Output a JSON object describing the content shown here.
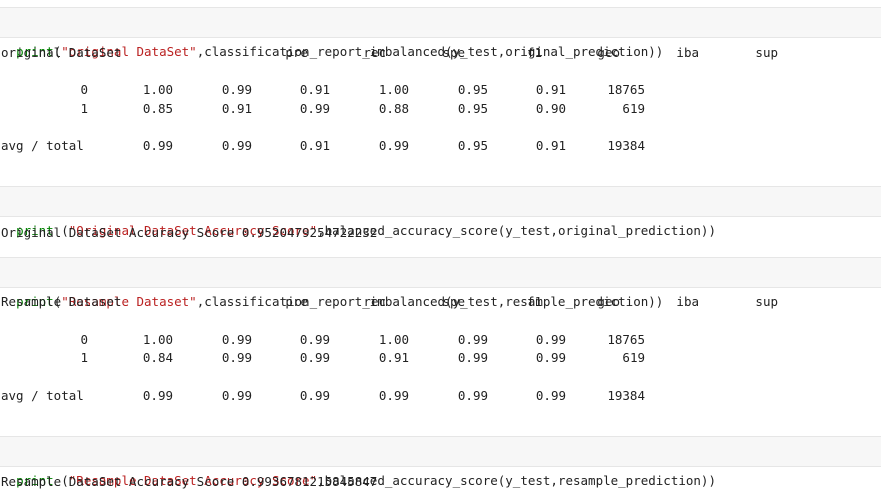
{
  "cell1": {
    "fn": "print",
    "open": "(",
    "str": "\"original DataSet\"",
    "rest": ",classification_report_imbalanced(y_test,original_prediction))"
  },
  "report1": {
    "title": "original DataSet",
    "headers": [
      "pre",
      "rec",
      "spe",
      "f1",
      "geo",
      "iba",
      "sup"
    ],
    "rows": [
      {
        "label": "0",
        "cols": [
          "1.00",
          "0.99",
          "0.91",
          "1.00",
          "0.95",
          "0.91",
          "18765"
        ]
      },
      {
        "label": "1",
        "cols": [
          "0.85",
          "0.91",
          "0.99",
          "0.88",
          "0.95",
          "0.90",
          "619"
        ]
      },
      {
        "label": "avg / total",
        "cols": [
          "0.99",
          "0.99",
          "0.91",
          "0.99",
          "0.95",
          "0.91",
          "19384"
        ]
      }
    ]
  },
  "cell2": {
    "fn": "print",
    "open": " (",
    "str": "\"Original DataSet Accuracy Score\"",
    "rest": ",balanced_accuracy_score(y_test,original_prediction))"
  },
  "out2": "Original DataSet Accuracy Score 0.9520479254722232",
  "cell3": {
    "fn": "print",
    "open": "(",
    "str": "\"Resample Dataset\"",
    "rest": ",classification_report_imbalanced(y_test,resample_prediction))"
  },
  "report2": {
    "title": "Resample Dataset",
    "headers": [
      "pre",
      "rec",
      "spe",
      "f1",
      "geo",
      "iba",
      "sup"
    ],
    "rows": [
      {
        "label": "0",
        "cols": [
          "1.00",
          "0.99",
          "0.99",
          "1.00",
          "0.99",
          "0.99",
          "18765"
        ]
      },
      {
        "label": "1",
        "cols": [
          "0.84",
          "0.99",
          "0.99",
          "0.91",
          "0.99",
          "0.99",
          "619"
        ]
      },
      {
        "label": "avg / total",
        "cols": [
          "0.99",
          "0.99",
          "0.99",
          "0.99",
          "0.99",
          "0.99",
          "19384"
        ]
      }
    ]
  },
  "cell4": {
    "fn": "print",
    "open": " (",
    "str": "\"Resample DataSet Accuracy Score\"",
    "rest": ",balanced_accuracy_score(y_test,resample_prediction))"
  },
  "out4": "Resample DataSet Accuracy Score 0.9936781215845847",
  "colors": {
    "print_keyword": "#008000",
    "string_literal": "#ba2121",
    "cell_background": "#f7f7f7"
  }
}
